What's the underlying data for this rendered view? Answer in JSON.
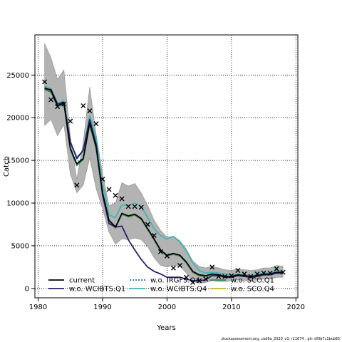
{
  "chart_data": {
    "type": "line",
    "xlabel": "Years",
    "ylabel": "Catch",
    "xlim": [
      1979.5,
      2020.3
    ],
    "ylim": [
      -1100,
      29700
    ],
    "x_ticks": [
      1980,
      1990,
      2000,
      2010,
      2020
    ],
    "y_ticks": [
      0,
      5000,
      10000,
      15000,
      20000,
      25000
    ],
    "grid": true,
    "legend_position": "bottom-left",
    "legend": [
      {
        "label": "current",
        "color": "#000000",
        "dash": "solid"
      },
      {
        "label": "w.o. WCIBTS.Q1",
        "color": "#2e1b6e",
        "dash": "solid"
      },
      {
        "label": "w.o. IRGFS.Q4",
        "color": "#2166c4",
        "dash": "dotted"
      },
      {
        "label": "w.o. WCIBTS.Q4",
        "color": "#40b7b0",
        "dash": "solid"
      },
      {
        "label": "w.o. SCO.Q1",
        "color": "#2a8a45",
        "dash": "solid"
      },
      {
        "label": "w.o. SCO.Q4",
        "color": "#c9b318",
        "dash": "solid"
      }
    ],
    "x": [
      1981,
      1982,
      1983,
      1984,
      1985,
      1986,
      1987,
      1988,
      1989,
      1990,
      1991,
      1992,
      1993,
      1994,
      1995,
      1996,
      1997,
      1998,
      1999,
      2000,
      2001,
      2002,
      2003,
      2004,
      2005,
      2006,
      2007,
      2008,
      2009,
      2010,
      2011,
      2012,
      2013,
      2014,
      2015,
      2016,
      2017,
      2018
    ],
    "band_upper": [
      28700,
      27000,
      24500,
      25600,
      17700,
      12800,
      17100,
      23600,
      18100,
      13400,
      9700,
      10000,
      12400,
      12000,
      12300,
      11200,
      9700,
      8000,
      6800,
      6000,
      6100,
      5600,
      4600,
      3200,
      2600,
      2400,
      2600,
      2400,
      2200,
      2100,
      2300,
      2200,
      2100,
      2200,
      2400,
      2400,
      2700,
      2600
    ],
    "band_lower": [
      19100,
      19800,
      17900,
      19200,
      13400,
      11200,
      12100,
      15300,
      11700,
      9300,
      6600,
      5200,
      5800,
      5700,
      5900,
      5700,
      4900,
      3600,
      2700,
      2500,
      2700,
      2600,
      1800,
      800,
      600,
      700,
      900,
      800,
      800,
      900,
      1000,
      900,
      900,
      1000,
      1100,
      1100,
      1300,
      1300
    ],
    "observed": [
      {
        "x": 1981,
        "y": 24200
      },
      {
        "x": 1982,
        "y": 22100
      },
      {
        "x": 1983,
        "y": 21300
      },
      {
        "x": 1984,
        "y": 21600
      },
      {
        "x": 1985,
        "y": 19600
      },
      {
        "x": 1986,
        "y": 12100
      },
      {
        "x": 1987,
        "y": 21400
      },
      {
        "x": 1988,
        "y": 20800
      },
      {
        "x": 1989,
        "y": 19300
      },
      {
        "x": 1990,
        "y": 12800
      },
      {
        "x": 1991,
        "y": 11600
      },
      {
        "x": 1992,
        "y": 10900
      },
      {
        "x": 1993,
        "y": 10500
      },
      {
        "x": 1994,
        "y": 9600
      },
      {
        "x": 1995,
        "y": 9600
      },
      {
        "x": 1996,
        "y": 9500
      },
      {
        "x": 1997,
        "y": 7500
      },
      {
        "x": 1998,
        "y": 6200
      },
      {
        "x": 1999,
        "y": 4300
      },
      {
        "x": 2000,
        "y": 3800
      },
      {
        "x": 2001,
        "y": 2400
      },
      {
        "x": 2002,
        "y": 2700
      },
      {
        "x": 2003,
        "y": 1300
      },
      {
        "x": 2004,
        "y": 700
      },
      {
        "x": 2005,
        "y": 900
      },
      {
        "x": 2006,
        "y": 1100
      },
      {
        "x": 2007,
        "y": 2500
      },
      {
        "x": 2008,
        "y": 1400
      },
      {
        "x": 2009,
        "y": 1400
      },
      {
        "x": 2010,
        "y": 1500
      },
      {
        "x": 2011,
        "y": 2100
      },
      {
        "x": 2012,
        "y": 1700
      },
      {
        "x": 2013,
        "y": 1400
      },
      {
        "x": 2014,
        "y": 1700
      },
      {
        "x": 2015,
        "y": 1800
      },
      {
        "x": 2016,
        "y": 1800
      },
      {
        "x": 2017,
        "y": 2300
      },
      {
        "x": 2018,
        "y": 1900
      }
    ],
    "series": [
      {
        "name": "current",
        "color": "#000000",
        "dash": "solid",
        "values": [
          23500,
          23200,
          21400,
          21700,
          16400,
          14600,
          15200,
          19400,
          16600,
          11200,
          8000,
          7200,
          8800,
          8500,
          8700,
          8200,
          7000,
          5800,
          4500,
          3900,
          4100,
          3900,
          3100,
          2000,
          1600,
          1500,
          1700,
          1600,
          1400,
          1400,
          1600,
          1500,
          1400,
          1500,
          1700,
          1700,
          1900,
          1900
        ]
      },
      {
        "name": "w.o. WCIBTS.Q1",
        "color": "#2e1b6e",
        "dash": "solid",
        "values": [
          23400,
          23300,
          21600,
          21800,
          17200,
          15200,
          16200,
          19800,
          16900,
          10900,
          7600,
          7200,
          7300,
          5700,
          4500,
          3400,
          2500,
          2000,
          1700,
          1300,
          1300,
          1300,
          1100,
          900,
          900,
          1000,
          1500,
          1500,
          1300,
          1300,
          1500,
          1400,
          1300,
          1400,
          1600,
          1600,
          1800,
          1800
        ]
      },
      {
        "name": "w.o. IRGFS.Q4",
        "color": "#2166c4",
        "dash": "dotted",
        "values": [
          23500,
          23200,
          21400,
          21700,
          16400,
          14700,
          15300,
          19400,
          16600,
          11200,
          8000,
          7200,
          8800,
          8500,
          8700,
          8200,
          7000,
          5800,
          4500,
          3900,
          4100,
          3900,
          3100,
          2000,
          1600,
          1500,
          1700,
          1600,
          1400,
          1400,
          1600,
          1500,
          1400,
          1500,
          1700,
          1700,
          1900,
          1900
        ]
      },
      {
        "name": "w.o. WCIBTS.Q4",
        "color": "#40b7b0",
        "dash": "solid",
        "values": [
          23700,
          23400,
          21700,
          22000,
          17100,
          15400,
          16100,
          20200,
          17600,
          12300,
          8600,
          8300,
          9800,
          9700,
          10000,
          9600,
          8300,
          7000,
          6200,
          5800,
          6100,
          5400,
          4400,
          3000,
          2100,
          1800,
          1900,
          1800,
          1700,
          1500,
          1700,
          1600,
          1500,
          1600,
          1800,
          1800,
          2100,
          2000
        ]
      },
      {
        "name": "w.o. SCO.Q1",
        "color": "#2a8a45",
        "dash": "solid",
        "values": [
          23300,
          23000,
          21300,
          21600,
          16300,
          14400,
          15100,
          19200,
          16400,
          11000,
          7900,
          7100,
          8700,
          8400,
          8600,
          8100,
          6900,
          5700,
          4400,
          3800,
          4000,
          3800,
          3000,
          1900,
          1500,
          1400,
          1600,
          1500,
          1300,
          1300,
          1500,
          1400,
          1300,
          1400,
          1600,
          1600,
          1800,
          1800
        ]
      },
      {
        "name": "w.o. SCO.Q4",
        "color": "#c9b318",
        "dash": "solid",
        "values": [
          23400,
          23100,
          21300,
          21700,
          16300,
          14500,
          15100,
          19300,
          16500,
          11100,
          7900,
          7200,
          8700,
          8500,
          8600,
          8100,
          6900,
          5700,
          4400,
          3800,
          4000,
          3800,
          3000,
          1900,
          1500,
          1400,
          1600,
          1500,
          1300,
          1300,
          1500,
          1400,
          1300,
          1400,
          1600,
          1600,
          1800,
          1800
        ]
      }
    ]
  },
  "footer": {
    "note": "stockassessment.org, cod6a_2020_v3, r11674 , git: df0b7c1bcb83"
  }
}
